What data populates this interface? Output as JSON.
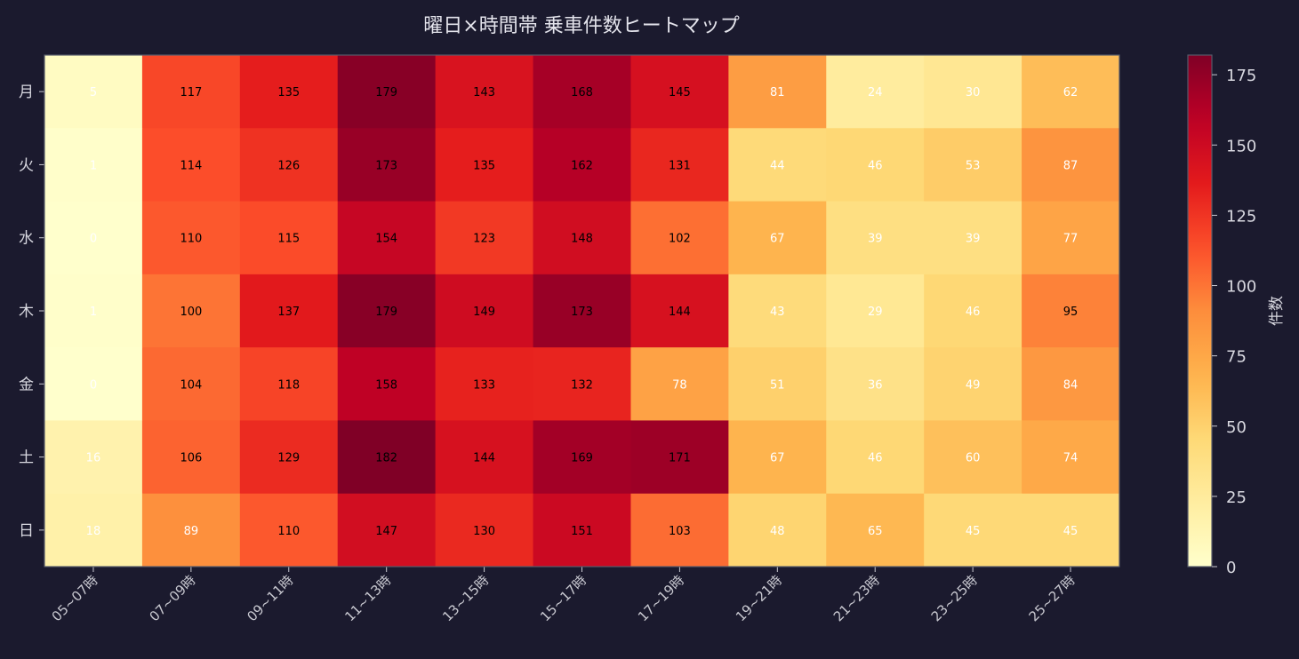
{
  "chart_data": {
    "type": "heatmap",
    "title": "曜日×時間帯 乗車件数ヒートマップ",
    "x_categories": [
      "05~07時",
      "07~09時",
      "09~11時",
      "11~13時",
      "13~15時",
      "15~17時",
      "17~19時",
      "19~21時",
      "21~23時",
      "23~25時",
      "25~27時"
    ],
    "y_categories": [
      "月",
      "火",
      "水",
      "木",
      "金",
      "土",
      "日"
    ],
    "values": [
      [
        5,
        117,
        135,
        179,
        143,
        168,
        145,
        81,
        24,
        30,
        62
      ],
      [
        1,
        114,
        126,
        173,
        135,
        162,
        131,
        44,
        46,
        53,
        87
      ],
      [
        0,
        110,
        115,
        154,
        123,
        148,
        102,
        67,
        39,
        39,
        77
      ],
      [
        1,
        100,
        137,
        179,
        149,
        173,
        144,
        43,
        29,
        46,
        95
      ],
      [
        0,
        104,
        118,
        158,
        133,
        132,
        78,
        51,
        36,
        49,
        84
      ],
      [
        16,
        106,
        129,
        182,
        144,
        169,
        171,
        67,
        46,
        60,
        74
      ],
      [
        18,
        89,
        110,
        147,
        130,
        151,
        103,
        48,
        65,
        45,
        45
      ]
    ],
    "colormap": "YlOrRd",
    "vmin": 0,
    "vmax": 182,
    "colorbar": {
      "label": "件数",
      "ticks": [
        0,
        25,
        50,
        75,
        100,
        125,
        150,
        175
      ]
    },
    "colors": {
      "background": "#1b1a2e",
      "text": "#d8d8e0",
      "label_dark": "#000000",
      "label_light": "#ffffff"
    }
  }
}
